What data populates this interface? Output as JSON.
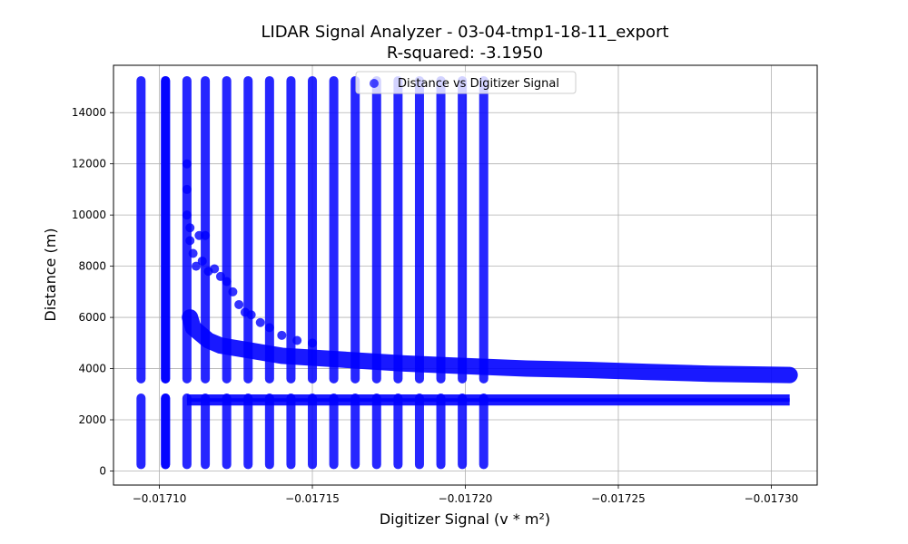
{
  "chart_data": {
    "type": "scatter",
    "title": "LIDAR Signal Analyzer - 03-04-tmp1-18-11_export",
    "subtitle": "R-squared: -3.1950",
    "xlabel": "Digitizer Signal (v * m²)",
    "ylabel": "Distance (m)",
    "xlim": [
      -0.017085,
      -0.017315
    ],
    "ylim": [
      -550,
      15850
    ],
    "x_inverted": true,
    "grid": true,
    "legend_position": "top-center",
    "x_ticks": [
      -0.0171,
      -0.01715,
      -0.0172,
      -0.01725,
      -0.0173
    ],
    "x_tick_labels": [
      "−0.01710",
      "−0.01715",
      "−0.01720",
      "−0.01725",
      "−0.01730"
    ],
    "y_ticks": [
      0,
      2000,
      4000,
      6000,
      8000,
      10000,
      12000,
      14000
    ],
    "y_tick_labels": [
      "0",
      "2000",
      "4000",
      "6000",
      "8000",
      "10000",
      "12000",
      "14000"
    ],
    "series": [
      {
        "name": "Distance vs Digitizer Signal",
        "color": "#0000ff",
        "vertical_bands": [
          {
            "x": -0.017094,
            "y_ranges": [
              [
                250,
                2850
              ],
              [
                3600,
                15250
              ]
            ]
          },
          {
            "x": -0.017102,
            "y_ranges": [
              [
                250,
                2850
              ],
              [
                3600,
                15250
              ]
            ]
          },
          {
            "x": -0.017102,
            "y_ranges": [
              [
                250,
                2850
              ],
              [
                3600,
                15250
              ]
            ]
          },
          {
            "x": -0.017109,
            "y_ranges": [
              [
                250,
                2850
              ],
              [
                3600,
                15250
              ]
            ]
          },
          {
            "x": -0.017115,
            "y_ranges": [
              [
                250,
                2850
              ],
              [
                3600,
                15250
              ]
            ]
          },
          {
            "x": -0.017122,
            "y_ranges": [
              [
                250,
                2850
              ],
              [
                3600,
                15250
              ]
            ]
          },
          {
            "x": -0.017129,
            "y_ranges": [
              [
                250,
                2850
              ],
              [
                3600,
                15250
              ]
            ]
          },
          {
            "x": -0.017136,
            "y_ranges": [
              [
                250,
                2850
              ],
              [
                3600,
                15250
              ]
            ]
          },
          {
            "x": -0.017143,
            "y_ranges": [
              [
                250,
                2850
              ],
              [
                3600,
                15250
              ]
            ]
          },
          {
            "x": -0.01715,
            "y_ranges": [
              [
                250,
                2850
              ],
              [
                3600,
                15250
              ]
            ]
          },
          {
            "x": -0.017157,
            "y_ranges": [
              [
                250,
                2850
              ],
              [
                3600,
                15250
              ]
            ]
          },
          {
            "x": -0.017164,
            "y_ranges": [
              [
                250,
                2850
              ],
              [
                3600,
                15250
              ]
            ]
          },
          {
            "x": -0.017171,
            "y_ranges": [
              [
                250,
                2850
              ],
              [
                3600,
                15250
              ]
            ]
          },
          {
            "x": -0.017178,
            "y_ranges": [
              [
                250,
                2850
              ],
              [
                3600,
                15250
              ]
            ]
          },
          {
            "x": -0.017185,
            "y_ranges": [
              [
                250,
                2850
              ],
              [
                3600,
                15250
              ]
            ]
          },
          {
            "x": -0.017192,
            "y_ranges": [
              [
                250,
                2850
              ],
              [
                3600,
                15250
              ]
            ]
          },
          {
            "x": -0.017199,
            "y_ranges": [
              [
                250,
                2850
              ],
              [
                3600,
                15250
              ]
            ]
          },
          {
            "x": -0.017206,
            "y_ranges": [
              [
                250,
                2850
              ],
              [
                3600,
                15250
              ]
            ]
          }
        ],
        "horizontal_bands": [
          {
            "y": 2700,
            "x_range": [
              -0.017109,
              -0.017306
            ]
          },
          {
            "y": 2850,
            "x_range": [
              -0.017109,
              -0.017306
            ]
          }
        ],
        "curve": [
          [
            -0.01711,
            6000
          ],
          [
            -0.017111,
            5600
          ],
          [
            -0.017113,
            5400
          ],
          [
            -0.017116,
            5100
          ],
          [
            -0.01712,
            4900
          ],
          [
            -0.01713,
            4700
          ],
          [
            -0.01714,
            4500
          ],
          [
            -0.01716,
            4350
          ],
          [
            -0.01718,
            4200
          ],
          [
            -0.0172,
            4100
          ],
          [
            -0.01722,
            4000
          ],
          [
            -0.01724,
            3950
          ],
          [
            -0.01726,
            3870
          ],
          [
            -0.01728,
            3800
          ],
          [
            -0.017306,
            3750
          ]
        ],
        "scatter_cluster": [
          [
            -0.017109,
            12000
          ],
          [
            -0.017109,
            11000
          ],
          [
            -0.017109,
            10000
          ],
          [
            -0.01711,
            9500
          ],
          [
            -0.01711,
            9000
          ],
          [
            -0.017111,
            8500
          ],
          [
            -0.017113,
            9200
          ],
          [
            -0.017115,
            9200
          ],
          [
            -0.017112,
            8000
          ],
          [
            -0.017114,
            8200
          ],
          [
            -0.017116,
            7800
          ],
          [
            -0.017118,
            7900
          ],
          [
            -0.01712,
            7600
          ],
          [
            -0.017122,
            7400
          ],
          [
            -0.017124,
            7000
          ],
          [
            -0.017126,
            6500
          ],
          [
            -0.017128,
            6200
          ],
          [
            -0.01713,
            6100
          ],
          [
            -0.017133,
            5800
          ],
          [
            -0.017136,
            5600
          ],
          [
            -0.01714,
            5300
          ],
          [
            -0.017145,
            5100
          ],
          [
            -0.01715,
            5000
          ]
        ]
      }
    ]
  }
}
